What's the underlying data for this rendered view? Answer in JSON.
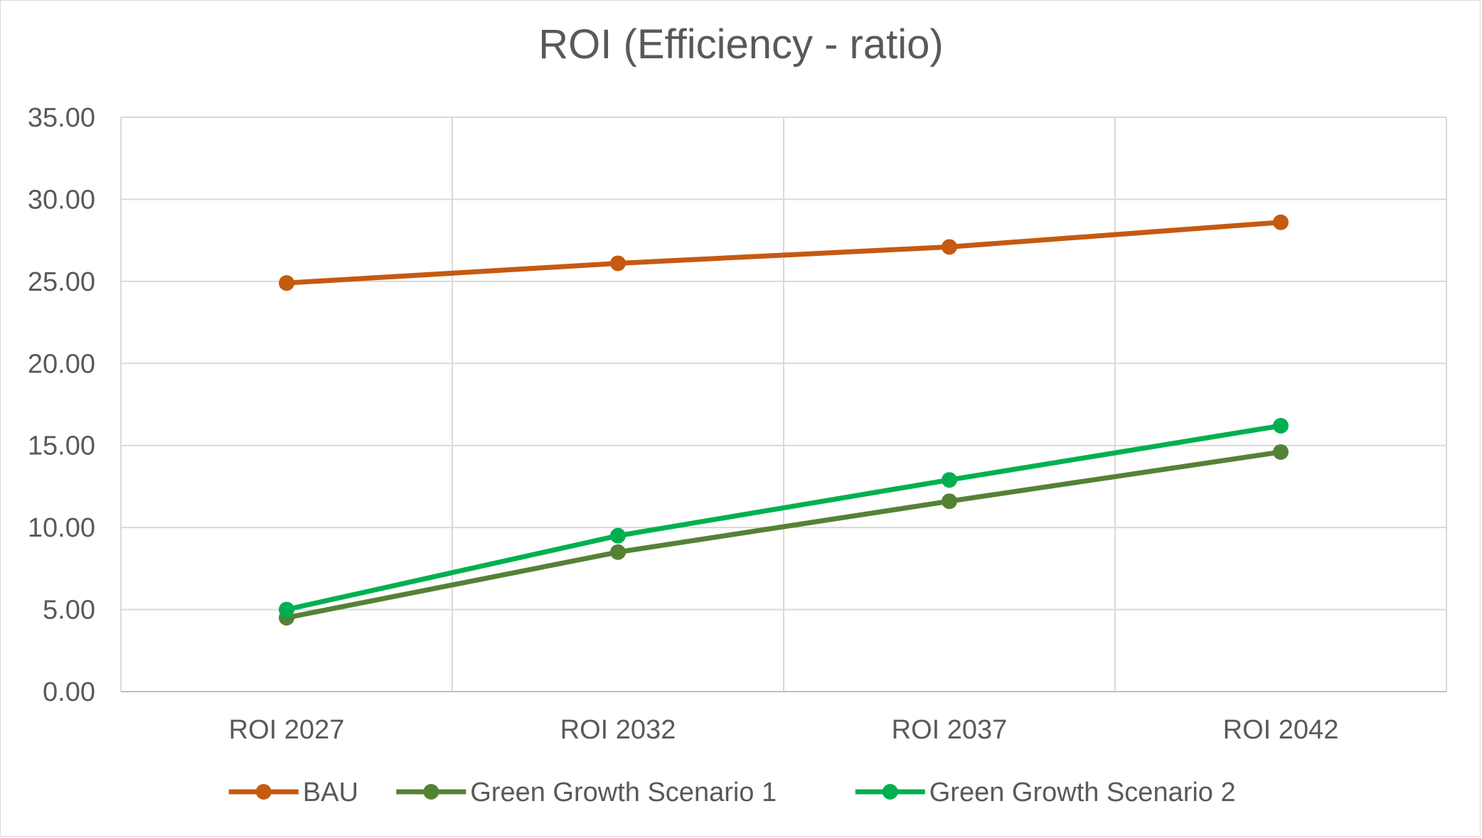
{
  "chart_data": {
    "type": "line",
    "title": "ROI (Efficiency - ratio)",
    "categories": [
      "ROI 2027",
      "ROI 2032",
      "ROI 2037",
      "ROI 2042"
    ],
    "ylim": [
      0,
      35
    ],
    "ytick_step": 5,
    "ytick_labels": [
      "0.00",
      "5.00",
      "10.00",
      "15.00",
      "20.00",
      "25.00",
      "30.00",
      "35.00"
    ],
    "xlabel": "",
    "ylabel": "",
    "grid": true,
    "legend_position": "bottom",
    "series": [
      {
        "name": "BAU",
        "color": "#c55a11",
        "values": [
          24.9,
          26.1,
          27.1,
          28.6
        ]
      },
      {
        "name": "Green Growth Scenario 1",
        "color": "#548235",
        "values": [
          4.5,
          8.5,
          11.6,
          14.6
        ]
      },
      {
        "name": "Green Growth Scenario 2",
        "color": "#00b050",
        "values": [
          5.0,
          9.5,
          12.9,
          16.2
        ]
      }
    ]
  }
}
